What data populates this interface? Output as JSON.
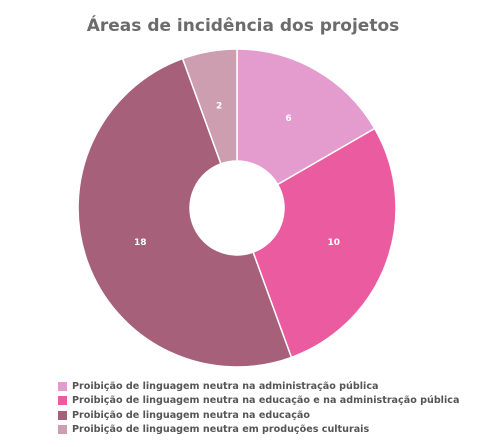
{
  "chart_data": {
    "type": "pie",
    "title": "Áreas de incidência dos projetos",
    "donut": true,
    "legend_position": "bottom",
    "series": [
      {
        "name": "Proibição de linguagem neutra na administração pública",
        "value": 6,
        "color": "#e49cce"
      },
      {
        "name": "Proibição de linguagem neutra na educação e na administração pública",
        "value": 10,
        "color": "#ea5c9f"
      },
      {
        "name": "Proibição de linguagem neutra na educação",
        "value": 18,
        "color": "#a66079"
      },
      {
        "name": "Proibição de linguagem neutra em produções culturais",
        "value": 2,
        "color": "#cc9eb0"
      }
    ]
  }
}
